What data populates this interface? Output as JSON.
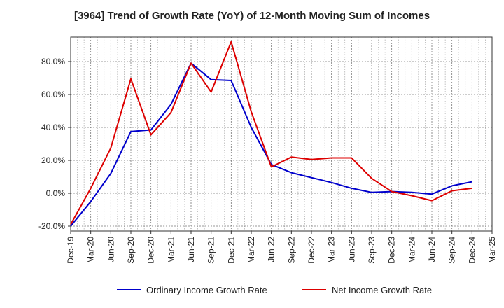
{
  "chart_data": {
    "type": "line",
    "title": "[3964]  Trend of Growth Rate (YoY) of 12-Month Moving Sum of Incomes",
    "xlabel": "",
    "ylabel": "",
    "categories": [
      "Dec-19",
      "Mar-20",
      "Jun-20",
      "Sep-20",
      "Dec-20",
      "Mar-21",
      "Jun-21",
      "Sep-21",
      "Dec-21",
      "Mar-22",
      "Jun-22",
      "Sep-22",
      "Dec-22",
      "Mar-23",
      "Jun-23",
      "Sep-23",
      "Dec-23",
      "Mar-24",
      "Jun-24",
      "Sep-24",
      "Dec-24",
      "Mar-25"
    ],
    "ylim": [
      -22,
      95
    ],
    "yticks": [
      -20,
      0,
      20,
      40,
      60,
      80
    ],
    "ytick_labels": [
      "-20.0%",
      "0.0%",
      "20.0%",
      "40.0%",
      "60.0%",
      "80.0%"
    ],
    "grid": true,
    "legend_position": "bottom",
    "series": [
      {
        "name": "Ordinary Income Growth Rate",
        "color": "#0000cc",
        "values": [
          -20,
          -5,
          12,
          37.5,
          38.5,
          54,
          79,
          69,
          68.5,
          40,
          17.5,
          12.5,
          9.5,
          6.5,
          3,
          0.5,
          1,
          0.5,
          -0.5,
          4.5,
          7,
          null
        ]
      },
      {
        "name": "Net Income Growth Rate",
        "color": "#dd0000",
        "values": [
          -19,
          3,
          27.5,
          69.5,
          35.5,
          49,
          79,
          61.5,
          92,
          49.5,
          16,
          22,
          20.5,
          21.5,
          21.5,
          9,
          1,
          -1.5,
          -4.5,
          1.5,
          3,
          null
        ]
      }
    ]
  }
}
